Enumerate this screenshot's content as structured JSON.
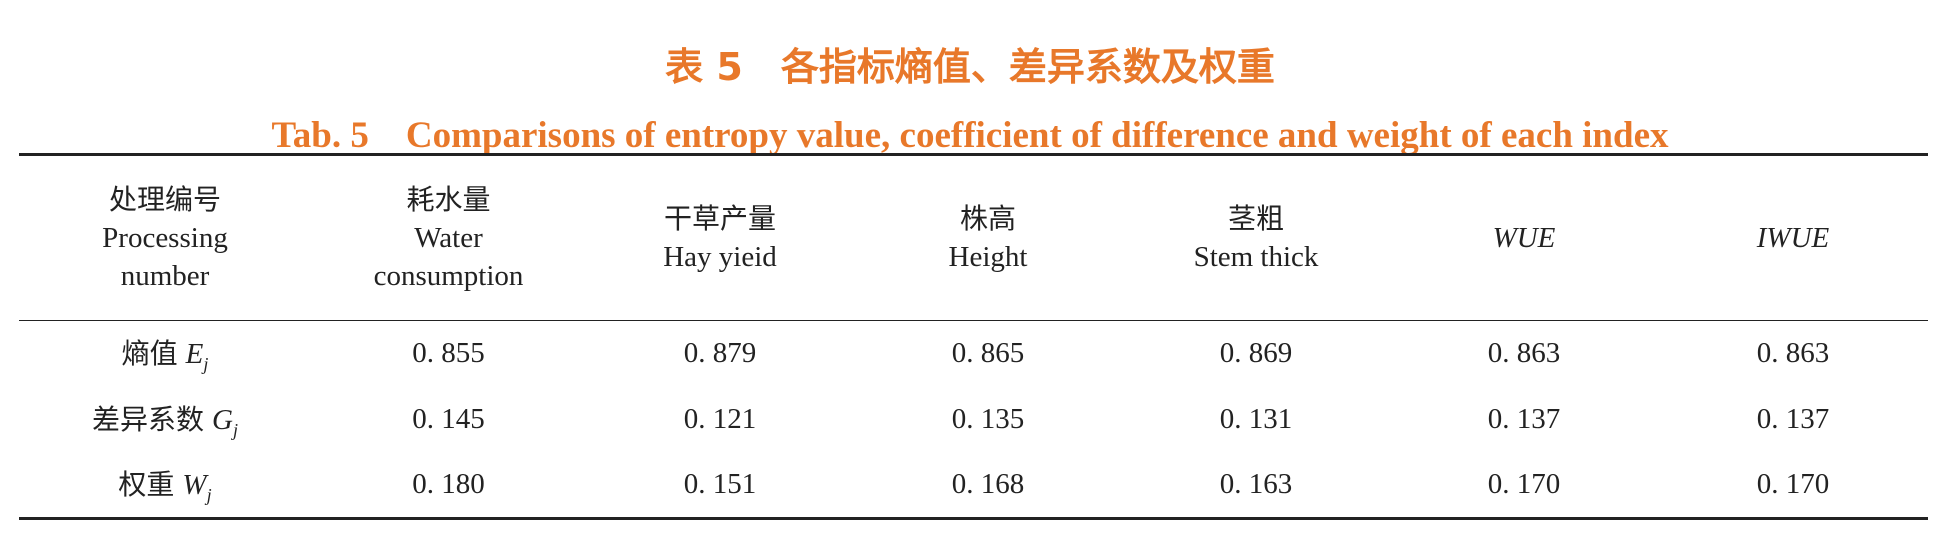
{
  "title_cn": "表 5　各指标熵值、差异系数及权重",
  "title_en": "Tab. 5　Comparisons of entropy value, coefficient of difference and weight of each index",
  "table": {
    "columns": [
      {
        "cn": "处理编号",
        "en": "Processing number"
      },
      {
        "cn": "耗水量",
        "en": "Water consumption"
      },
      {
        "cn": "干草产量",
        "en": "Hay yieid"
      },
      {
        "cn": "株高",
        "en": "Height"
      },
      {
        "cn": "茎粗",
        "en": "Stem thick"
      },
      {
        "en": "WUE"
      },
      {
        "en": "IWUE"
      }
    ],
    "rows": [
      {
        "label": "熵值",
        "symbol": "E",
        "subscript": "j",
        "cells": [
          "0. 855",
          "0. 879",
          "0. 865",
          "0. 869",
          "0. 863",
          "0. 863"
        ]
      },
      {
        "label": "差异系数",
        "symbol": "G",
        "subscript": "j",
        "cells": [
          "0. 145",
          "0. 121",
          "0. 135",
          "0. 131",
          "0. 137",
          "0. 137"
        ]
      },
      {
        "label": "权重",
        "symbol": "W",
        "subscript": "j",
        "cells": [
          "0. 180",
          "0. 151",
          "0. 168",
          "0. 163",
          "0. 170",
          "0. 170"
        ]
      }
    ]
  }
}
